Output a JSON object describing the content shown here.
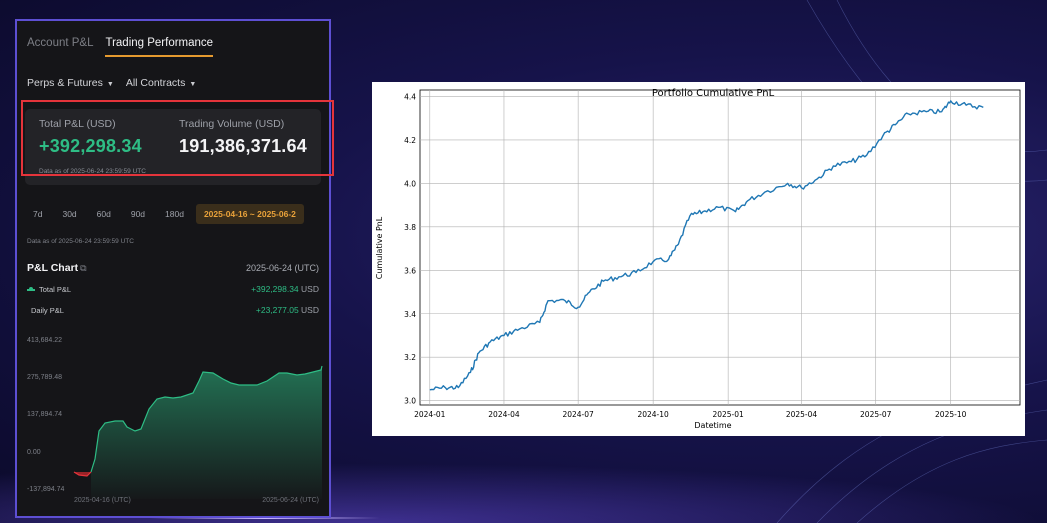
{
  "panel": {
    "tabs": [
      {
        "label": "Account P&L",
        "active": false
      },
      {
        "label": "Trading Performance",
        "active": true
      }
    ],
    "filters": [
      {
        "label": "Perps & Futures"
      },
      {
        "label": "All Contracts"
      }
    ],
    "summary": {
      "total_label": "Total P&L (USD)",
      "total_value": "+392,298.34",
      "volume_label": "Trading Volume (USD)",
      "volume_value": "191,386,371.64",
      "as_of": "Data as of 2025-06-24 23:59:59 UTC"
    },
    "ranges": [
      {
        "label": "7d"
      },
      {
        "label": "30d"
      },
      {
        "label": "60d"
      },
      {
        "label": "90d"
      },
      {
        "label": "180d"
      },
      {
        "label": "2025-04-16 ~ 2025-06-2",
        "active": true
      }
    ],
    "as_of_2": "Data as of 2025-06-24 23:59:59 UTC",
    "pl_chart": {
      "title": "P&L Chart",
      "date": "2025-06-24 (UTC)",
      "total_label": "Total P&L",
      "total_value": "+392,298.34",
      "daily_label": "Daily P&L",
      "daily_value": "+23,277.05",
      "unit": "USD",
      "y_ticks": [
        "413,684.22",
        "275,789.48",
        "137,894.74",
        "0.00",
        "-137,894.74"
      ],
      "x_start": "2025-04-16 (UTC)",
      "x_end": "2025-06-24 (UTC)"
    },
    "colors": {
      "accent": "#e59a2f",
      "positive": "#2ebd85",
      "negative": "#e5343b",
      "frame": "#5d4fd3"
    }
  },
  "chart_data": {
    "type": "line",
    "title": "Portfolio Cumulative PnL",
    "xlabel": "Datetime",
    "ylabel": "Cumulative PnL",
    "x_ticks": [
      "2024-01",
      "2024-04",
      "2024-07",
      "2024-10",
      "2025-01",
      "2025-04",
      "2025-07",
      "2025-10"
    ],
    "y_ticks": [
      "3.0",
      "3.2",
      "3.4",
      "3.6",
      "3.8",
      "4.0",
      "4.2",
      "4.4"
    ],
    "ylim": [
      2.98,
      4.43
    ],
    "grid": true,
    "series": [
      {
        "color": "#1f77b4",
        "x": [
          "2024-01-01",
          "2024-01-20",
          "2024-02-05",
          "2024-02-20",
          "2024-03-01",
          "2024-03-15",
          "2024-04-01",
          "2024-04-20",
          "2024-05-15",
          "2024-05-25",
          "2024-06-15",
          "2024-07-01",
          "2024-07-15",
          "2024-08-01",
          "2024-08-20",
          "2024-09-10",
          "2024-10-01",
          "2024-10-20",
          "2024-11-01",
          "2024-11-15",
          "2024-12-01",
          "2024-12-20",
          "2025-01-10",
          "2025-01-25",
          "2025-02-15",
          "2025-03-15",
          "2025-04-01",
          "2025-04-20",
          "2025-05-10",
          "2025-06-01",
          "2025-06-20",
          "2025-07-10",
          "2025-07-25",
          "2025-08-10",
          "2025-09-01",
          "2025-09-20",
          "2025-10-01",
          "2025-10-20",
          "2025-11-10"
        ],
        "y": [
          3.05,
          3.06,
          3.06,
          3.13,
          3.22,
          3.27,
          3.3,
          3.33,
          3.36,
          3.46,
          3.46,
          3.43,
          3.5,
          3.55,
          3.57,
          3.59,
          3.64,
          3.65,
          3.72,
          3.85,
          3.87,
          3.89,
          3.87,
          3.92,
          3.96,
          4.0,
          3.98,
          4.02,
          4.08,
          4.1,
          4.13,
          4.22,
          4.27,
          4.32,
          4.33,
          4.33,
          4.38,
          4.36,
          4.35
        ]
      }
    ]
  }
}
